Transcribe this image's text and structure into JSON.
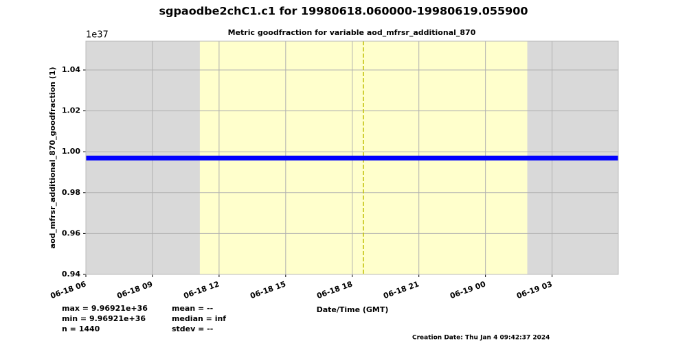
{
  "chart_data": {
    "type": "line",
    "title": "sgpaodbe2chC1.c1 for 19980618.060000-19980619.055900",
    "subtitle": "Metric goodfraction for variable aod_mfrsr_additional_870",
    "y_label": "aod_mfrsr_additional_870_goodfraction (1)",
    "x_label": "Date/Time (GMT)",
    "offset_label": "1e37",
    "xlim": [
      "06-18 06:00",
      "06-19 05:59"
    ],
    "xticks": [
      {
        "value": "06-18 06:00",
        "label": "06-18 06"
      },
      {
        "value": "06-18 09:00",
        "label": "06-18 09"
      },
      {
        "value": "06-18 12:00",
        "label": "06-18 12"
      },
      {
        "value": "06-18 15:00",
        "label": "06-18 15"
      },
      {
        "value": "06-18 18:00",
        "label": "06-18 18"
      },
      {
        "value": "06-18 21:00",
        "label": "06-18 21"
      },
      {
        "value": "06-19 00:00",
        "label": "06-19 00"
      },
      {
        "value": "06-19 03:00",
        "label": "06-19 03"
      }
    ],
    "ylim": [
      0.94,
      1.0541
    ],
    "yticks": [
      0.94,
      0.96,
      0.98,
      1.0,
      1.02,
      1.04
    ],
    "ytick_labels": [
      "0.94",
      "0.96",
      "0.98",
      "1.00",
      "1.02",
      "1.04"
    ],
    "grid": true,
    "background_color": "#d9d9d9",
    "shaded_regions": [
      {
        "start": "06-18 11:08",
        "end": "06-19 01:53",
        "color": "#ffffcc"
      }
    ],
    "vline": {
      "x": "06-18 18:30",
      "color": "#bfbf00"
    },
    "series": [
      {
        "color": "#0000ff",
        "x": [
          "06-18 06:00",
          "06-19 05:59"
        ],
        "values": [
          0.996921,
          0.996921
        ]
      }
    ],
    "stats": [
      [
        "max = 9.96921e+36",
        "min = 9.96921e+36",
        "n = 1440"
      ],
      [
        "mean = --",
        "median = inf",
        "stdev = --"
      ]
    ],
    "creation_date": "Creation Date: Thu Jan  4 09:42:37 2024"
  }
}
